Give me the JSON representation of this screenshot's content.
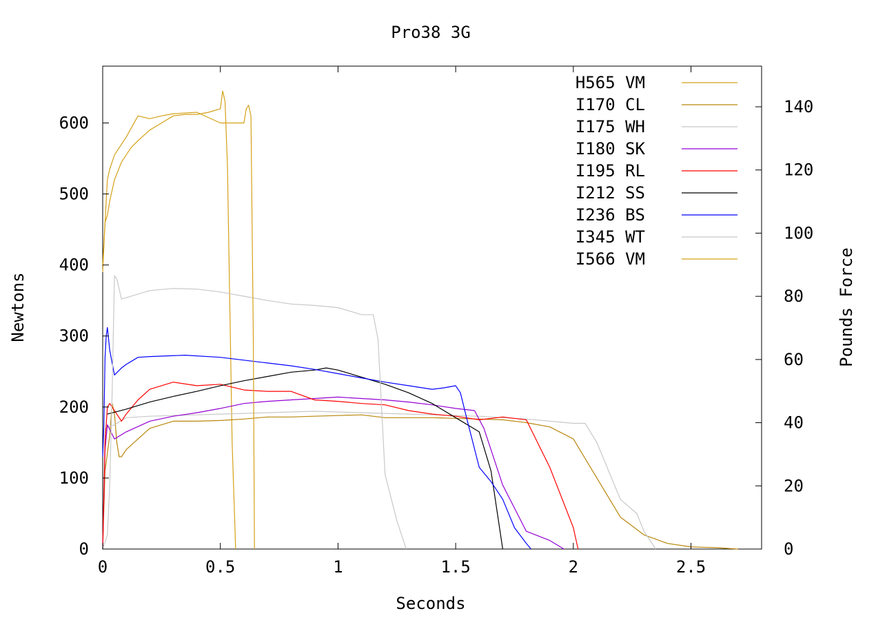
{
  "chart_data": {
    "type": "line",
    "title": "Pro38 3G",
    "xlabel": "Seconds",
    "ylabel": "Newtons",
    "y2label": "Pounds Force",
    "xlim": [
      0,
      2.8
    ],
    "ylim": [
      0,
      680
    ],
    "y2lim": [
      0,
      152.87
    ],
    "xticks": [
      0,
      0.5,
      1,
      1.5,
      2,
      2.5
    ],
    "xtick_labels": [
      "0",
      "0.5",
      "1",
      "1.5",
      "2",
      "2.5"
    ],
    "yticks": [
      0,
      100,
      200,
      300,
      400,
      500,
      600
    ],
    "ytick_labels": [
      "0",
      "100",
      "200",
      "300",
      "400",
      "500",
      "600"
    ],
    "y2ticks": [
      0,
      20,
      40,
      60,
      80,
      100,
      120,
      140
    ],
    "y2tick_labels": [
      "0",
      "20",
      "40",
      "60",
      "80",
      "100",
      "120",
      "140"
    ],
    "grid": false,
    "legend_position": "top-right",
    "series": [
      {
        "name": "H565 VM",
        "color": "#d4a017",
        "x": [
          0,
          0.01,
          0.02,
          0.03,
          0.05,
          0.08,
          0.12,
          0.15,
          0.2,
          0.25,
          0.3,
          0.35,
          0.4,
          0.45,
          0.5,
          0.51,
          0.52,
          0.53,
          0.55,
          0.565
        ],
        "y": [
          390,
          460,
          470,
          490,
          520,
          545,
          565,
          575,
          590,
          600,
          610,
          612,
          612,
          615,
          620,
          645,
          630,
          540,
          150,
          0
        ]
      },
      {
        "name": "I170 CL",
        "color": "#b8860b",
        "x": [
          0,
          0.01,
          0.03,
          0.04,
          0.05,
          0.06,
          0.07,
          0.08,
          0.1,
          0.15,
          0.2,
          0.3,
          0.4,
          0.5,
          0.6,
          0.7,
          0.8,
          0.9,
          1.0,
          1.1,
          1.2,
          1.3,
          1.4,
          1.5,
          1.6,
          1.7,
          1.8,
          1.9,
          2.0,
          2.1,
          2.2,
          2.3,
          2.4,
          2.5,
          2.6,
          2.7
        ],
        "y": [
          0,
          110,
          160,
          205,
          190,
          150,
          130,
          130,
          140,
          155,
          170,
          180,
          180,
          181,
          183,
          186,
          186,
          187,
          188,
          189,
          185,
          185,
          185,
          184,
          183,
          182,
          178,
          172,
          155,
          100,
          45,
          20,
          8,
          3,
          2,
          0
        ]
      },
      {
        "name": "I175 WH",
        "color": "#c8c8c8",
        "x": [
          0,
          0.01,
          0.05,
          0.1,
          0.2,
          0.3,
          0.4,
          0.5,
          0.6,
          0.7,
          0.8,
          0.9,
          1.0,
          1.1,
          1.2,
          1.3,
          1.4,
          1.5,
          1.6,
          1.7,
          1.8,
          1.9,
          2.0,
          2.05,
          2.1,
          2.2,
          2.27,
          2.3,
          2.35
        ],
        "y": [
          0,
          170,
          175,
          185,
          187,
          188,
          189,
          190,
          191,
          192,
          193,
          194,
          193,
          192,
          191,
          190,
          189,
          188,
          187,
          185,
          183,
          180,
          177,
          177,
          150,
          70,
          50,
          25,
          0
        ]
      },
      {
        "name": "I180 SK",
        "color": "#9400d3",
        "x": [
          0,
          0.01,
          0.02,
          0.05,
          0.1,
          0.2,
          0.3,
          0.4,
          0.5,
          0.6,
          0.7,
          0.8,
          0.9,
          1.0,
          1.1,
          1.2,
          1.3,
          1.4,
          1.5,
          1.58,
          1.62,
          1.7,
          1.8,
          1.9,
          1.96
        ],
        "y": [
          0,
          140,
          175,
          155,
          165,
          180,
          187,
          192,
          198,
          205,
          208,
          210,
          212,
          214,
          212,
          210,
          207,
          203,
          198,
          195,
          170,
          90,
          25,
          12,
          0
        ]
      },
      {
        "name": "I195 RL",
        "color": "#ff0000",
        "x": [
          0,
          0.01,
          0.02,
          0.03,
          0.05,
          0.08,
          0.1,
          0.15,
          0.2,
          0.3,
          0.4,
          0.5,
          0.6,
          0.7,
          0.8,
          0.9,
          1.0,
          1.1,
          1.2,
          1.3,
          1.4,
          1.5,
          1.6,
          1.7,
          1.8,
          1.9,
          2.0,
          2.02
        ],
        "y": [
          0,
          150,
          200,
          205,
          195,
          180,
          190,
          210,
          225,
          235,
          230,
          232,
          224,
          222,
          222,
          210,
          208,
          205,
          203,
          195,
          190,
          187,
          182,
          186,
          182,
          115,
          30,
          0
        ]
      },
      {
        "name": "I212 SS",
        "color": "#000000",
        "x": [
          0.02,
          0.1,
          0.2,
          0.3,
          0.4,
          0.5,
          0.6,
          0.7,
          0.8,
          0.9,
          0.95,
          1.0,
          1.1,
          1.2,
          1.3,
          1.4,
          1.5,
          1.6,
          1.65,
          1.7
        ],
        "y": [
          190,
          197,
          207,
          215,
          222,
          230,
          237,
          243,
          249,
          252,
          255,
          252,
          242,
          232,
          220,
          205,
          185,
          165,
          110,
          0
        ]
      },
      {
        "name": "I236 BS",
        "color": "#0000ff",
        "x": [
          0,
          0.005,
          0.01,
          0.015,
          0.02,
          0.03,
          0.05,
          0.08,
          0.1,
          0.15,
          0.2,
          0.35,
          0.5,
          0.6,
          0.7,
          0.8,
          0.9,
          1.0,
          1.1,
          1.2,
          1.3,
          1.4,
          1.45,
          1.5,
          1.52,
          1.55,
          1.6,
          1.65,
          1.7,
          1.75,
          1.8,
          1.82
        ],
        "y": [
          130,
          175,
          270,
          300,
          312,
          280,
          245,
          255,
          260,
          270,
          271,
          273,
          270,
          266,
          262,
          258,
          253,
          247,
          241,
          235,
          230,
          225,
          227,
          230,
          220,
          180,
          115,
          95,
          70,
          30,
          8,
          0
        ]
      },
      {
        "name": "I345 WT",
        "color": "#c8c8c8",
        "x": [
          0,
          0.02,
          0.03,
          0.04,
          0.05,
          0.06,
          0.08,
          0.1,
          0.2,
          0.3,
          0.4,
          0.5,
          0.6,
          0.7,
          0.8,
          0.9,
          1.0,
          1.1,
          1.15,
          1.17,
          1.2,
          1.25,
          1.29
        ],
        "y": [
          0,
          20,
          90,
          220,
          385,
          380,
          352,
          354,
          364,
          367,
          366,
          362,
          356,
          350,
          345,
          343,
          340,
          330,
          330,
          295,
          105,
          40,
          0
        ]
      },
      {
        "name": "I566 VM",
        "color": "#d4a017",
        "x": [
          0,
          0.01,
          0.02,
          0.03,
          0.05,
          0.1,
          0.15,
          0.2,
          0.25,
          0.3,
          0.4,
          0.5,
          0.6,
          0.61,
          0.62,
          0.63,
          0.64,
          0.645
        ],
        "y": [
          400,
          460,
          520,
          535,
          555,
          580,
          610,
          606,
          610,
          613,
          615,
          600,
          600,
          620,
          625,
          610,
          300,
          0
        ]
      }
    ]
  }
}
